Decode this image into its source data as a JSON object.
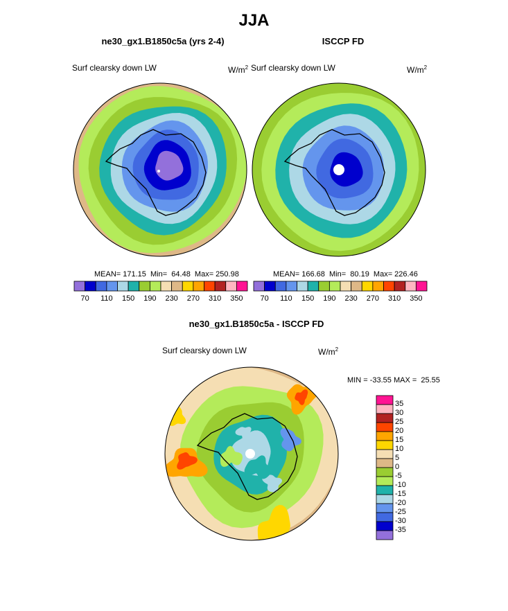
{
  "figure_title": "JJA",
  "panels": [
    {
      "title": "ne30_gx1.B1850c5a (yrs 2-4)",
      "left_label": "Surf clearsky down LW",
      "units_base": "W/m",
      "units_exp": "2",
      "stats": "MEAN= 171.15  Min=  64.48  Max= 250.98",
      "colorbar_ticks": [
        "70",
        "110",
        "150",
        "190",
        "230",
        "270",
        "310",
        "350"
      ]
    },
    {
      "title": "ISCCP FD",
      "left_label": "Surf clearsky down LW",
      "units_base": "W/m",
      "units_exp": "2",
      "stats": "MEAN= 166.68  Min=  80.19  Max= 226.46",
      "colorbar_ticks": [
        "70",
        "110",
        "150",
        "190",
        "230",
        "270",
        "310",
        "350"
      ]
    },
    {
      "title": "ne30_gx1.B1850c5a - ISCCP FD",
      "left_label": "Surf clearsky down LW",
      "units_base": "W/m",
      "units_exp": "2",
      "stats": "MIN = -33.55 MAX =  25.55",
      "colorbar_labels": [
        "35",
        "30",
        "25",
        "20",
        "15",
        "10",
        "5",
        "0",
        "-5",
        "-10",
        "-15",
        "-20",
        "-25",
        "-30",
        "-35"
      ]
    }
  ],
  "palettes": {
    "absolute": [
      "#9370db",
      "#0000cd",
      "#4169e1",
      "#6495ed",
      "#add8e6",
      "#20b2aa",
      "#9acd32",
      "#b4eb5a",
      "#f5deb3",
      "#deb887",
      "#ffd700",
      "#ffa500",
      "#ff4500",
      "#b22222",
      "#ffb6c1",
      "#ff1493"
    ],
    "difference": [
      "#ff1493",
      "#ffb6c1",
      "#b22222",
      "#ff4500",
      "#ffa500",
      "#ffd700",
      "#f5deb3",
      "#deb887",
      "#9acd32",
      "#b4eb5a",
      "#20b2aa",
      "#add8e6",
      "#6495ed",
      "#4169e1",
      "#0000cd",
      "#9370db"
    ]
  },
  "map_fields": {
    "panel1_rings": [
      "#f5deb3",
      "#deb887",
      "#b4eb5a",
      "#9acd32",
      "#20b2aa",
      "#add8e6",
      "#6495ed",
      "#4169e1",
      "#0000cd",
      "#9370db"
    ],
    "panel2_rings": [
      "#f5deb3",
      "#9acd32",
      "#b4eb5a",
      "#20b2aa",
      "#add8e6",
      "#6495ed",
      "#4169e1",
      "#0000cd"
    ],
    "panel3_rings": [
      "#deb887",
      "#f5deb3",
      "#b4eb5a",
      "#9acd32",
      "#20b2aa",
      "#add8e6"
    ]
  }
}
